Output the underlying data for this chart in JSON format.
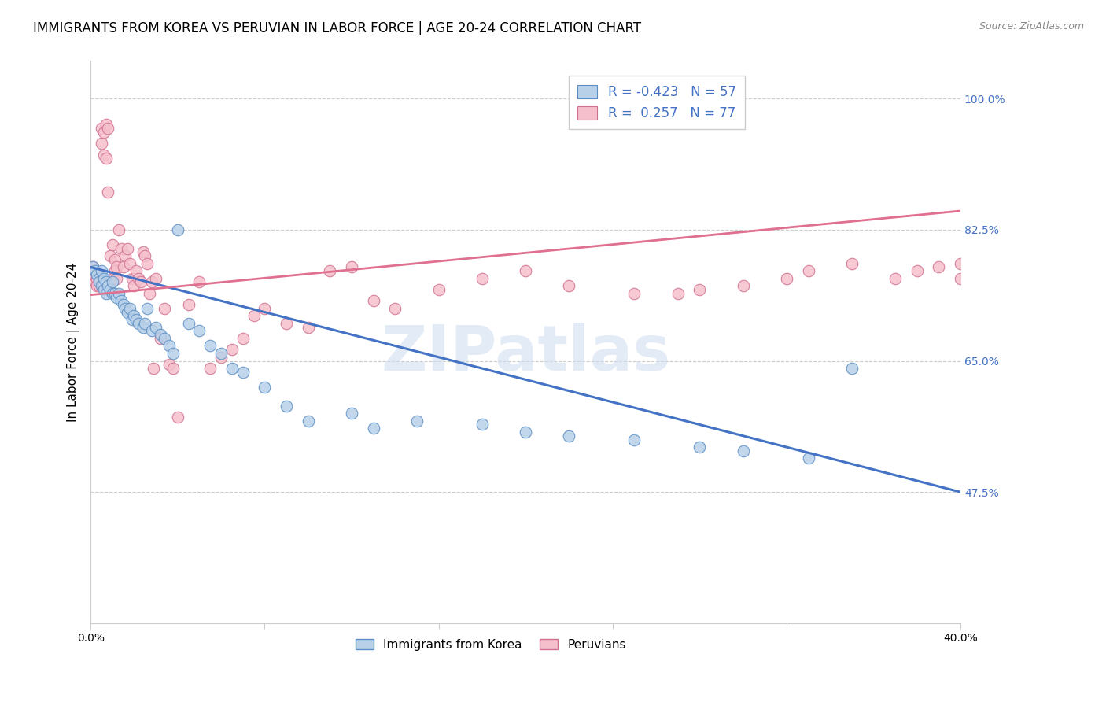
{
  "title": "IMMIGRANTS FROM KOREA VS PERUVIAN IN LABOR FORCE | AGE 20-24 CORRELATION CHART",
  "source": "Source: ZipAtlas.com",
  "ylabel": "In Labor Force | Age 20-24",
  "xlim": [
    0.0,
    0.4
  ],
  "ylim": [
    0.3,
    1.05
  ],
  "xtick_positions": [
    0.0,
    0.08,
    0.16,
    0.24,
    0.32,
    0.4
  ],
  "xticklabels": [
    "0.0%",
    "",
    "",
    "",
    "",
    "40.0%"
  ],
  "ytick_positions": [
    0.475,
    0.65,
    0.825,
    1.0
  ],
  "ytick_labels": [
    "47.5%",
    "65.0%",
    "82.5%",
    "100.0%"
  ],
  "legend_blue_r": "-0.423",
  "legend_blue_n": "57",
  "legend_pink_r": "0.257",
  "legend_pink_n": "77",
  "blue_fill": "#b8d0e8",
  "blue_edge": "#5b8ec4",
  "pink_fill": "#f5c0cc",
  "pink_edge": "#d07090",
  "blue_line": "#4472c4",
  "pink_line": "#e07090",
  "watermark": "ZIPatlas",
  "title_fontsize": 12,
  "axis_label_fontsize": 11,
  "tick_fontsize": 10,
  "legend_fontsize": 12,
  "korea_x": [
    0.001,
    0.002,
    0.003,
    0.004,
    0.004,
    0.005,
    0.005,
    0.006,
    0.006,
    0.007,
    0.007,
    0.008,
    0.009,
    0.01,
    0.01,
    0.011,
    0.012,
    0.013,
    0.014,
    0.015,
    0.016,
    0.017,
    0.018,
    0.019,
    0.02,
    0.021,
    0.022,
    0.024,
    0.025,
    0.026,
    0.028,
    0.03,
    0.032,
    0.034,
    0.036,
    0.038,
    0.04,
    0.045,
    0.05,
    0.055,
    0.06,
    0.065,
    0.07,
    0.08,
    0.09,
    0.1,
    0.12,
    0.13,
    0.15,
    0.18,
    0.2,
    0.22,
    0.25,
    0.28,
    0.3,
    0.33,
    0.35
  ],
  "korea_y": [
    0.775,
    0.77,
    0.765,
    0.76,
    0.755,
    0.77,
    0.75,
    0.76,
    0.745,
    0.755,
    0.74,
    0.75,
    0.745,
    0.755,
    0.74,
    0.74,
    0.735,
    0.74,
    0.73,
    0.725,
    0.72,
    0.715,
    0.72,
    0.705,
    0.71,
    0.705,
    0.7,
    0.695,
    0.7,
    0.72,
    0.69,
    0.695,
    0.685,
    0.68,
    0.67,
    0.66,
    0.825,
    0.7,
    0.69,
    0.67,
    0.66,
    0.64,
    0.635,
    0.615,
    0.59,
    0.57,
    0.58,
    0.56,
    0.57,
    0.565,
    0.555,
    0.55,
    0.545,
    0.535,
    0.53,
    0.52,
    0.64
  ],
  "peru_x": [
    0.001,
    0.001,
    0.002,
    0.002,
    0.003,
    0.003,
    0.004,
    0.004,
    0.005,
    0.005,
    0.006,
    0.006,
    0.007,
    0.007,
    0.008,
    0.008,
    0.009,
    0.009,
    0.01,
    0.01,
    0.011,
    0.011,
    0.012,
    0.012,
    0.013,
    0.014,
    0.015,
    0.016,
    0.017,
    0.018,
    0.019,
    0.02,
    0.021,
    0.022,
    0.023,
    0.024,
    0.025,
    0.026,
    0.027,
    0.028,
    0.029,
    0.03,
    0.032,
    0.034,
    0.036,
    0.038,
    0.04,
    0.045,
    0.05,
    0.055,
    0.06,
    0.065,
    0.07,
    0.075,
    0.08,
    0.09,
    0.1,
    0.11,
    0.12,
    0.13,
    0.14,
    0.16,
    0.18,
    0.2,
    0.22,
    0.25,
    0.27,
    0.28,
    0.3,
    0.32,
    0.33,
    0.35,
    0.37,
    0.38,
    0.39,
    0.4,
    0.4
  ],
  "peru_y": [
    0.775,
    0.76,
    0.77,
    0.755,
    0.76,
    0.75,
    0.76,
    0.75,
    0.96,
    0.94,
    0.955,
    0.925,
    0.92,
    0.965,
    0.96,
    0.875,
    0.755,
    0.79,
    0.76,
    0.805,
    0.785,
    0.77,
    0.775,
    0.76,
    0.825,
    0.8,
    0.775,
    0.79,
    0.8,
    0.78,
    0.76,
    0.75,
    0.77,
    0.76,
    0.755,
    0.795,
    0.79,
    0.78,
    0.74,
    0.755,
    0.64,
    0.76,
    0.68,
    0.72,
    0.645,
    0.64,
    0.575,
    0.725,
    0.755,
    0.64,
    0.655,
    0.665,
    0.68,
    0.71,
    0.72,
    0.7,
    0.695,
    0.77,
    0.775,
    0.73,
    0.72,
    0.745,
    0.76,
    0.77,
    0.75,
    0.74,
    0.74,
    0.745,
    0.75,
    0.76,
    0.77,
    0.78,
    0.76,
    0.77,
    0.775,
    0.78,
    0.76
  ]
}
